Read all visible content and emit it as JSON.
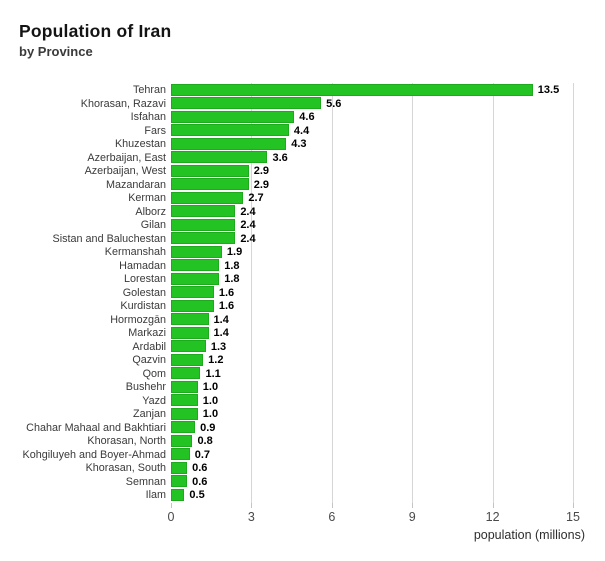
{
  "title": "Population of Iran",
  "subtitle": "by Province",
  "chart_data": {
    "type": "bar",
    "orientation": "horizontal",
    "title": "Population of Iran",
    "subtitle": "by Province",
    "xlabel": "population (millions)",
    "categories": [
      "Tehran",
      "Khorasan, Razavi",
      "Isfahan",
      "Fars",
      "Khuzestan",
      "Azerbaijan, East",
      "Azerbaijan, West",
      "Mazandaran",
      "Kerman",
      "Alborz",
      "Gilan",
      "Sistan and Baluchestan",
      "Kermanshah",
      "Hamadan",
      "Lorestan",
      "Golestan",
      "Kurdistan",
      "Hormozgān",
      "Markazi",
      "Ardabil",
      "Qazvin",
      "Qom",
      "Bushehr",
      "Yazd",
      "Zanjan",
      "Chahar Mahaal and Bakhtiari",
      "Khorasan, North",
      "Kohgiluyeh and Boyer-Ahmad",
      "Khorasan, South",
      "Semnan",
      "Ilam"
    ],
    "values": [
      13.5,
      5.6,
      4.6,
      4.4,
      4.3,
      3.6,
      2.9,
      2.9,
      2.7,
      2.4,
      2.4,
      2.4,
      1.9,
      1.8,
      1.8,
      1.6,
      1.6,
      1.4,
      1.4,
      1.3,
      1.2,
      1.1,
      1.0,
      1.0,
      1.0,
      0.9,
      0.8,
      0.7,
      0.6,
      0.6,
      0.5
    ],
    "value_labels_shown": true,
    "xticks": [
      0,
      3,
      6,
      9,
      12,
      15
    ],
    "xlim": [
      0,
      15
    ],
    "grid": "vertical",
    "legend": "none",
    "bar_color": "#22C322",
    "grid_color": "#D6D6D6",
    "background_color": "#FFFFFF"
  }
}
